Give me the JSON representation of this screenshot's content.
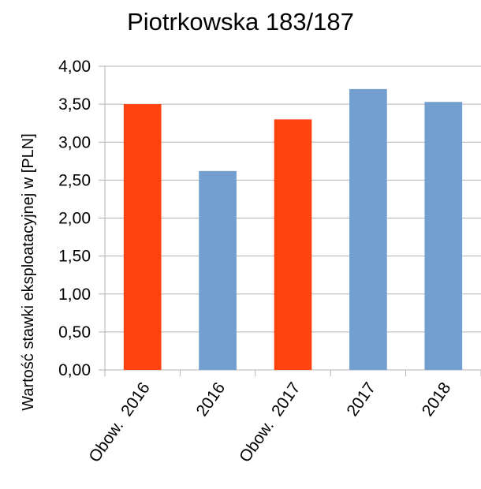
{
  "chart_data": {
    "type": "bar",
    "title": "Piotrkowska 183/187",
    "y_axis_label": "Wartość stawki eksploatacyjnej w [PLN]",
    "categories": [
      "Obow.  2016",
      "2016",
      "Obow.  2017",
      "2017",
      "2018"
    ],
    "values": [
      3.5,
      2.62,
      3.3,
      3.7,
      3.53
    ],
    "colors": [
      "#ff420e",
      "#729fcf",
      "#ff420e",
      "#729fcf",
      "#729fcf"
    ],
    "ylim": [
      0,
      4
    ],
    "yticks": [
      {
        "value": 0,
        "label": "0,00"
      },
      {
        "value": 0.5,
        "label": "0,50"
      },
      {
        "value": 1,
        "label": "1,00"
      },
      {
        "value": 1.5,
        "label": "1,50"
      },
      {
        "value": 2,
        "label": "2,00"
      },
      {
        "value": 2.5,
        "label": "2,50"
      },
      {
        "value": 3,
        "label": "3,00"
      },
      {
        "value": 3.5,
        "label": "3,50"
      },
      {
        "value": 4,
        "label": "4,00"
      }
    ],
    "grid": true
  }
}
